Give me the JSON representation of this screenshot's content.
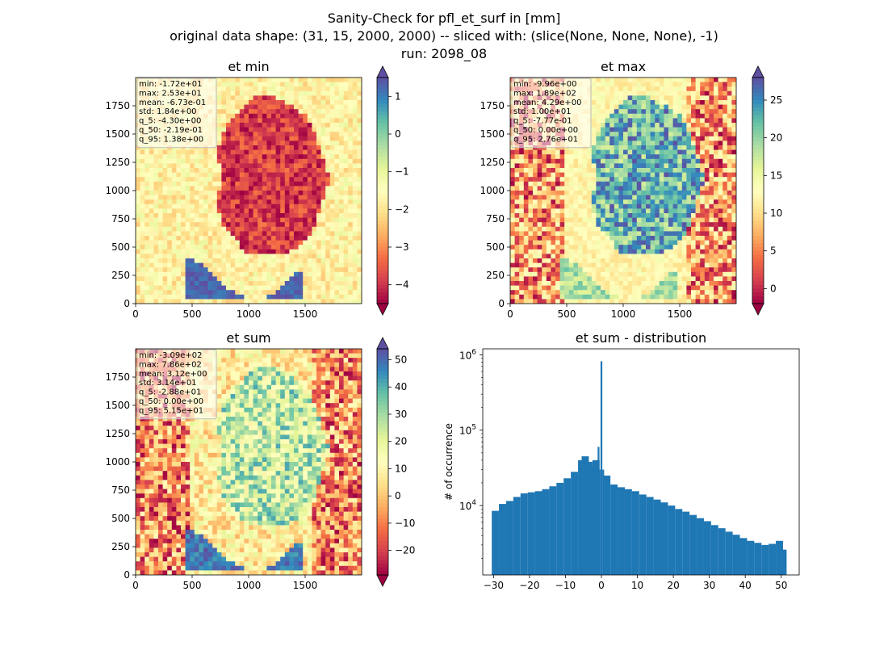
{
  "figure": {
    "title_lines": [
      "Sanity-Check for pfl_et_surf in [mm]",
      "original data shape: (31, 15, 2000, 2000) -- sliced with: (slice(None, None, None), -1)",
      "run: 2098_08"
    ]
  },
  "chart_data": [
    {
      "type": "heatmap",
      "title": "et min",
      "xlim": [
        0,
        2000
      ],
      "ylim": [
        0,
        2000
      ],
      "xticks": [
        0,
        500,
        1000,
        1500
      ],
      "yticks": [
        0,
        250,
        500,
        750,
        1000,
        1250,
        1500,
        1750
      ],
      "colormap": "Spectral",
      "colorbar": {
        "range": [
          -4.5,
          1.5
        ],
        "ticks": [
          -4,
          -3,
          -2,
          -1,
          0,
          1
        ],
        "extend": "both"
      },
      "stats": [
        "min: -1.72e+01",
        "max: 2.53e+01",
        "mean: -6.73e-01",
        "std: 1.84e+00",
        "q_5: -4.30e+00",
        "q_50: -2.19e-01",
        "q_95: 1.38e+00"
      ]
    },
    {
      "type": "heatmap",
      "title": "et max",
      "xlim": [
        0,
        2000
      ],
      "ylim": [
        0,
        2000
      ],
      "xticks": [
        0,
        500,
        1000,
        1500
      ],
      "yticks": [
        0,
        250,
        500,
        750,
        1000,
        1250,
        1500,
        1750
      ],
      "colormap": "Spectral",
      "colorbar": {
        "range": [
          -2,
          28
        ],
        "ticks": [
          0,
          5,
          10,
          15,
          20,
          25
        ],
        "extend": "both"
      },
      "stats": [
        "min: -9.96e+00",
        "max: 1.89e+02",
        "mean: 4.29e+00",
        "std: 1.00e+01",
        "q_5: -7.77e-01",
        "q_50: 0.00e+00",
        "q_95: 2.76e+01"
      ]
    },
    {
      "type": "heatmap",
      "title": "et sum",
      "xlim": [
        0,
        2000
      ],
      "ylim": [
        0,
        2000
      ],
      "xticks": [
        0,
        500,
        1000,
        1500
      ],
      "yticks": [
        0,
        250,
        500,
        750,
        1000,
        1250,
        1500,
        1750
      ],
      "colormap": "Spectral",
      "colorbar": {
        "range": [
          -29,
          54
        ],
        "ticks": [
          -20,
          -10,
          0,
          10,
          20,
          30,
          40,
          50
        ],
        "extend": "both"
      },
      "stats": [
        "min: -3.09e+02",
        "max: 7.86e+02",
        "mean: 3.12e+00",
        "std: 3.14e+01",
        "q_5: -2.88e+01",
        "q_50: 0.00e+00",
        "q_95: 5.15e+01"
      ]
    },
    {
      "type": "bar",
      "title": "et sum - distribution",
      "ylabel": "# of occurrence",
      "yscale": "log",
      "xlim": [
        -33,
        55
      ],
      "ylim": [
        1200,
        1200000
      ],
      "xticks": [
        -30,
        -20,
        -10,
        0,
        10,
        20,
        30,
        40,
        50
      ],
      "yticks": [
        {
          "value": 10000,
          "base": "10",
          "exp": "4"
        },
        {
          "value": 100000,
          "base": "10",
          "exp": "5"
        },
        {
          "value": 1000000,
          "base": "10",
          "exp": "6"
        }
      ],
      "bar_color": "#1f77b4",
      "bins": [
        {
          "x": -29.5,
          "y": 8500
        },
        {
          "x": -27.5,
          "y": 10500
        },
        {
          "x": -25.5,
          "y": 11500
        },
        {
          "x": -23.5,
          "y": 13000
        },
        {
          "x": -21.5,
          "y": 14500
        },
        {
          "x": -19.5,
          "y": 15000
        },
        {
          "x": -17.5,
          "y": 15500
        },
        {
          "x": -15.5,
          "y": 16500
        },
        {
          "x": -13.5,
          "y": 18000
        },
        {
          "x": -11.5,
          "y": 20000
        },
        {
          "x": -9.5,
          "y": 23000
        },
        {
          "x": -7.5,
          "y": 28000
        },
        {
          "x": -5.5,
          "y": 40000
        },
        {
          "x": -4.5,
          "y": 45000
        },
        {
          "x": -3.5,
          "y": 38000
        },
        {
          "x": -2.5,
          "y": 33000
        },
        {
          "x": -1.5,
          "y": 40000
        },
        {
          "x": -0.8,
          "y": 60000
        },
        {
          "x": -0.5,
          "y": 30000
        },
        {
          "x": 0.0,
          "y": 820000
        },
        {
          "x": 0.5,
          "y": 30000
        },
        {
          "x": 1.5,
          "y": 25000
        },
        {
          "x": 3.5,
          "y": 19000
        },
        {
          "x": 5.5,
          "y": 17500
        },
        {
          "x": 7.5,
          "y": 16500
        },
        {
          "x": 9.5,
          "y": 15500
        },
        {
          "x": 11.5,
          "y": 14000
        },
        {
          "x": 13.5,
          "y": 13000
        },
        {
          "x": 15.5,
          "y": 12000
        },
        {
          "x": 17.5,
          "y": 11000
        },
        {
          "x": 19.5,
          "y": 10000
        },
        {
          "x": 21.5,
          "y": 9000
        },
        {
          "x": 23.5,
          "y": 8300
        },
        {
          "x": 25.5,
          "y": 7500
        },
        {
          "x": 27.5,
          "y": 6800
        },
        {
          "x": 29.5,
          "y": 6200
        },
        {
          "x": 31.5,
          "y": 5500
        },
        {
          "x": 33.5,
          "y": 5000
        },
        {
          "x": 35.5,
          "y": 4500
        },
        {
          "x": 37.5,
          "y": 4100
        },
        {
          "x": 39.5,
          "y": 3700
        },
        {
          "x": 41.5,
          "y": 3400
        },
        {
          "x": 43.5,
          "y": 3200
        },
        {
          "x": 45.5,
          "y": 3000
        },
        {
          "x": 47.5,
          "y": 3100
        },
        {
          "x": 49.5,
          "y": 3400
        },
        {
          "x": 50.5,
          "y": 2600
        }
      ]
    }
  ]
}
